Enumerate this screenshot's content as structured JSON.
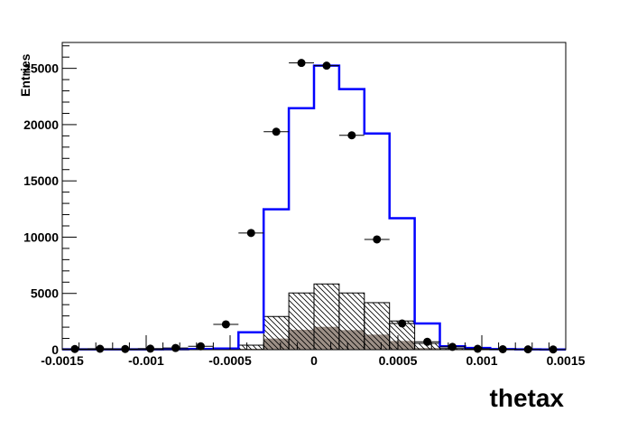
{
  "chart_data": {
    "type": "bar",
    "title": "",
    "xlabel": "thetax",
    "ylabel": "Entries",
    "xlim": [
      -0.0015,
      0.0015
    ],
    "ylim": [
      0,
      27300
    ],
    "grid": false,
    "bin_edges_start": -0.0015,
    "bin_width": 0.00015,
    "x_ticks": [
      -0.0015,
      -0.001,
      -0.0005,
      0,
      0.0005,
      0.001,
      0.0015
    ],
    "x_tick_labels": [
      "-0.0015",
      "-0.001",
      "-0.0005",
      "0",
      "0.0005",
      "0.001",
      "0.0015"
    ],
    "y_ticks": [
      0,
      5000,
      10000,
      15000,
      20000,
      25000
    ],
    "y_tick_labels": [
      "0",
      "5000",
      "10000",
      "15000",
      "20000",
      "25000"
    ],
    "series": [
      {
        "style": "step-line",
        "color": "#0000ff",
        "values": [
          30,
          30,
          30,
          30,
          40,
          60,
          100,
          1550,
          12480,
          21460,
          25240,
          23150,
          19210,
          11680,
          2330,
          300,
          150,
          50,
          30,
          20
        ]
      },
      {
        "style": "hatched",
        "color": "#000000",
        "values": [
          0,
          0,
          0,
          0,
          0,
          20,
          100,
          400,
          2950,
          5040,
          5840,
          5040,
          4180,
          2550,
          560,
          100,
          30,
          0,
          0,
          0
        ]
      },
      {
        "style": "filled",
        "color": "#9c8f86",
        "values": [
          0,
          0,
          0,
          0,
          0,
          10,
          30,
          80,
          990,
          1770,
          2030,
          1740,
          1340,
          780,
          150,
          40,
          10,
          0,
          0,
          0
        ]
      },
      {
        "style": "points",
        "color": "#000000",
        "values": [
          60,
          80,
          60,
          90,
          150,
          300,
          2250,
          10370,
          19370,
          25480,
          25240,
          19050,
          9800,
          2330,
          700,
          250,
          80,
          40,
          30,
          20
        ]
      }
    ]
  }
}
